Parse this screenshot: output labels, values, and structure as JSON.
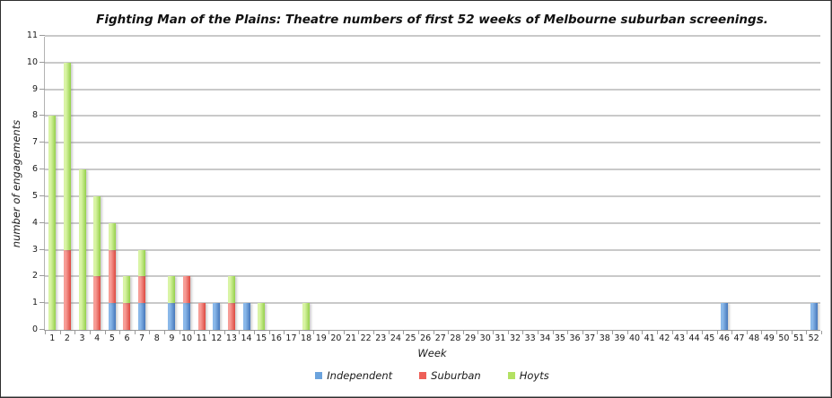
{
  "chart_data": {
    "type": "bar",
    "stacked": true,
    "title": "Fighting Man of the Plains: Theatre numbers of first 52 weeks of Melbourne suburban screenings.",
    "xlabel": "Week",
    "ylabel": "number of engagements",
    "ylim": [
      0,
      11
    ],
    "ytick_step": 1,
    "grid": true,
    "legend_position": "bottom",
    "gridline_color": "#c9c9c9",
    "axis_color": "#9a9a9a",
    "categories": [
      1,
      2,
      3,
      4,
      5,
      6,
      7,
      8,
      9,
      10,
      11,
      12,
      13,
      14,
      15,
      16,
      17,
      18,
      19,
      20,
      21,
      22,
      23,
      24,
      25,
      26,
      27,
      28,
      29,
      30,
      31,
      32,
      33,
      34,
      35,
      36,
      37,
      38,
      39,
      40,
      41,
      42,
      43,
      44,
      45,
      46,
      47,
      48,
      49,
      50,
      51,
      52
    ],
    "series": [
      {
        "name": "Independent",
        "color": "#6ba3dd",
        "color_light": "#8ab8e9",
        "color_dark": "#4577bb",
        "values": [
          0,
          0,
          0,
          0,
          1,
          0,
          1,
          0,
          1,
          1,
          0,
          1,
          0,
          1,
          0,
          0,
          0,
          0,
          0,
          0,
          0,
          0,
          0,
          0,
          0,
          0,
          0,
          0,
          0,
          0,
          0,
          0,
          0,
          0,
          0,
          0,
          0,
          0,
          0,
          0,
          0,
          0,
          0,
          0,
          0,
          1,
          0,
          0,
          0,
          0,
          0,
          1
        ]
      },
      {
        "name": "Suburban",
        "color": "#ee5f58",
        "color_light": "#f79d96",
        "color_dark": "#dd4840",
        "values": [
          0,
          3,
          0,
          2,
          2,
          1,
          1,
          0,
          0,
          1,
          1,
          0,
          1,
          0,
          0,
          0,
          0,
          0,
          0,
          0,
          0,
          0,
          0,
          0,
          0,
          0,
          0,
          0,
          0,
          0,
          0,
          0,
          0,
          0,
          0,
          0,
          0,
          0,
          0,
          0,
          0,
          0,
          0,
          0,
          0,
          0,
          0,
          0,
          0,
          0,
          0,
          0
        ]
      },
      {
        "name": "Hoyts",
        "color": "#b3e163",
        "color_light": "#d9f4a5",
        "color_dark": "#95d14b",
        "values": [
          8,
          7,
          6,
          3,
          1,
          1,
          1,
          0,
          1,
          0,
          0,
          0,
          1,
          0,
          1,
          0,
          0,
          1,
          0,
          0,
          0,
          0,
          0,
          0,
          0,
          0,
          0,
          0,
          0,
          0,
          0,
          0,
          0,
          0,
          0,
          0,
          0,
          0,
          0,
          0,
          0,
          0,
          0,
          0,
          0,
          0,
          0,
          0,
          0,
          0,
          0,
          0
        ]
      }
    ]
  }
}
